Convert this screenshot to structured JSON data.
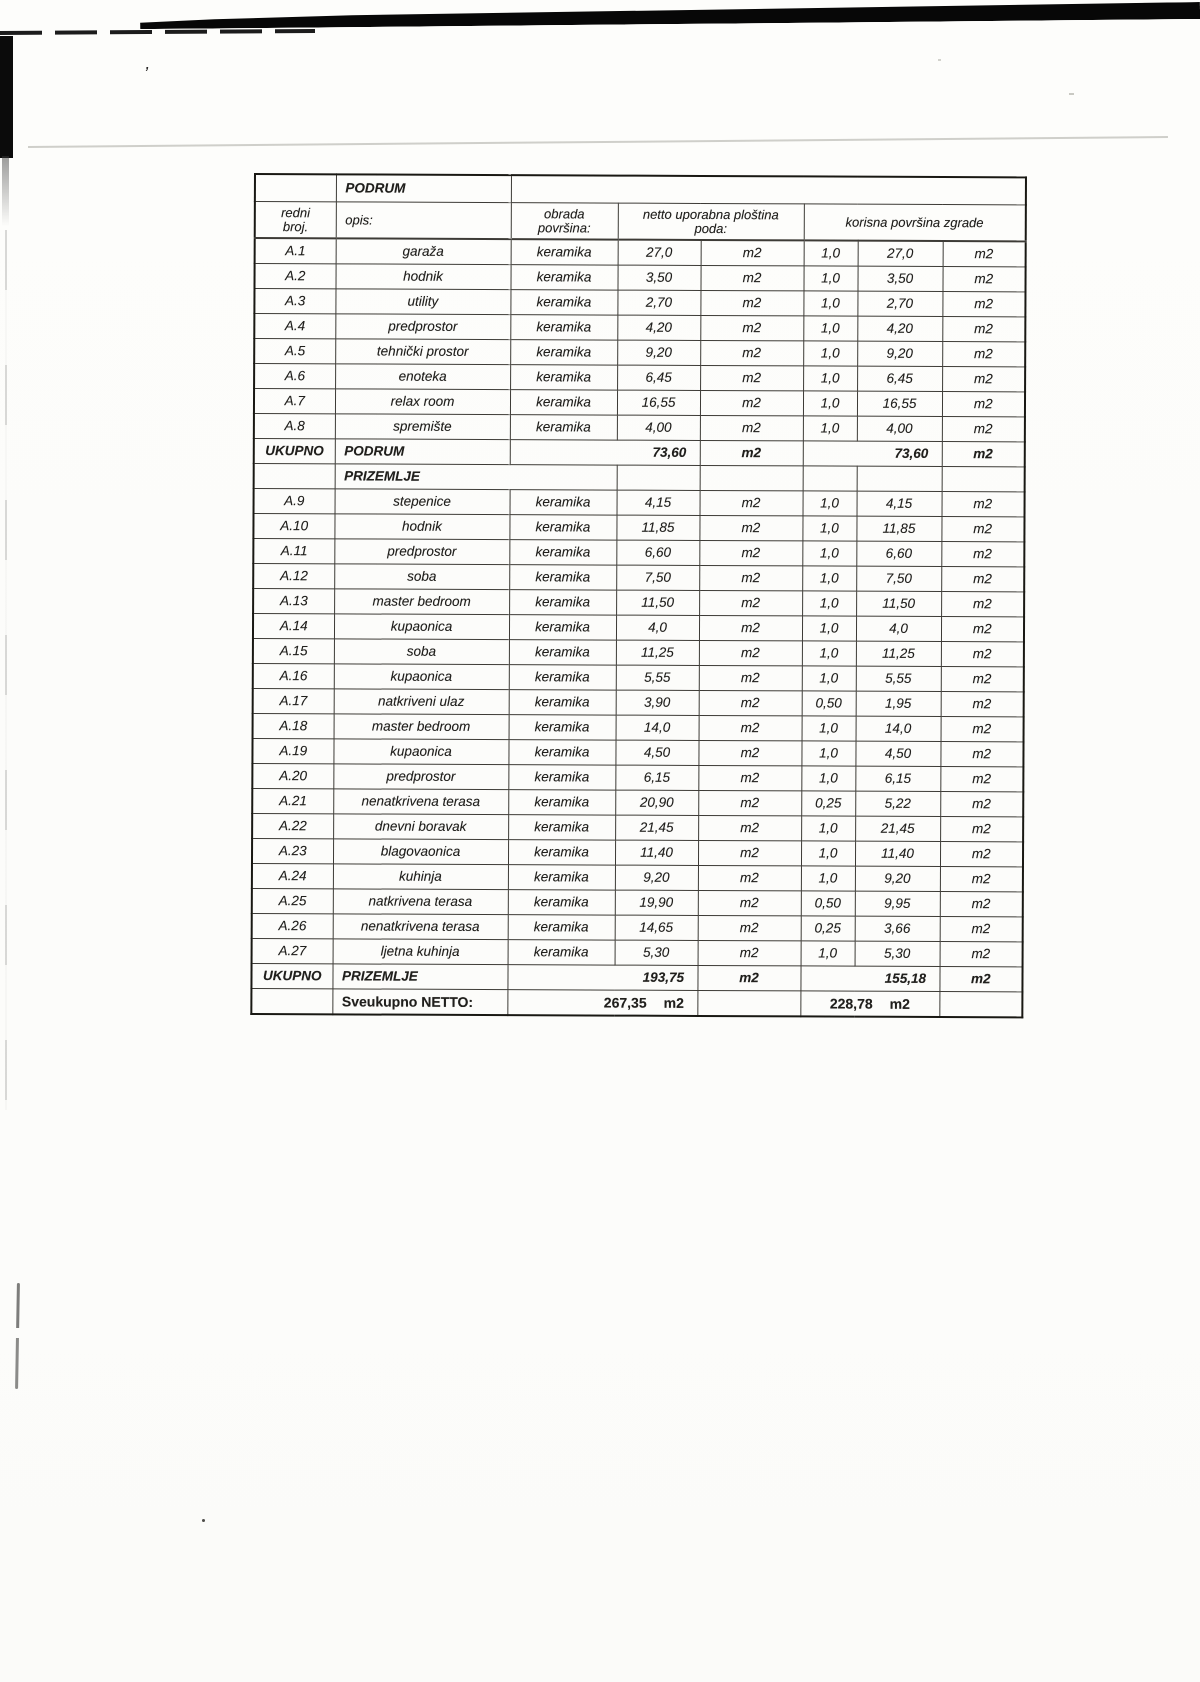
{
  "document": {
    "section1_title": "PODRUM",
    "header": {
      "col_redni_line1": "redni",
      "col_redni_line2": "broj.",
      "col_opis": "opis:",
      "col_obrada_line1": "obrada",
      "col_obrada_line2": "površina:",
      "col_netto_line1": "netto uporabna ploština",
      "col_netto_line2": "poda:",
      "col_korisna": "korisna površina zgrade"
    },
    "rows": [
      {
        "type": "data",
        "id": "A.1",
        "opis": "garaža",
        "obrada": "keramika",
        "netto": "27,0",
        "netto_unit": "m2",
        "coef": "1,0",
        "korisna": "27,0",
        "korisna_unit": "m2"
      },
      {
        "type": "data",
        "id": "A.2",
        "opis": "hodnik",
        "obrada": "keramika",
        "netto": "3,50",
        "netto_unit": "m2",
        "coef": "1,0",
        "korisna": "3,50",
        "korisna_unit": "m2"
      },
      {
        "type": "data",
        "id": "A.3",
        "opis": "utility",
        "obrada": "keramika",
        "netto": "2,70",
        "netto_unit": "m2",
        "coef": "1,0",
        "korisna": "2,70",
        "korisna_unit": "m2"
      },
      {
        "type": "data",
        "id": "A.4",
        "opis": "predprostor",
        "obrada": "keramika",
        "netto": "4,20",
        "netto_unit": "m2",
        "coef": "1,0",
        "korisna": "4,20",
        "korisna_unit": "m2"
      },
      {
        "type": "data",
        "id": "A.5",
        "opis": "tehnički prostor",
        "obrada": "keramika",
        "netto": "9,20",
        "netto_unit": "m2",
        "coef": "1,0",
        "korisna": "9,20",
        "korisna_unit": "m2"
      },
      {
        "type": "data",
        "id": "A.6",
        "opis": "enoteka",
        "obrada": "keramika",
        "netto": "6,45",
        "netto_unit": "m2",
        "coef": "1,0",
        "korisna": "6,45",
        "korisna_unit": "m2"
      },
      {
        "type": "data",
        "id": "A.7",
        "opis": "relax room",
        "obrada": "keramika",
        "netto": "16,55",
        "netto_unit": "m2",
        "coef": "1,0",
        "korisna": "16,55",
        "korisna_unit": "m2"
      },
      {
        "type": "data",
        "id": "A.8",
        "opis": "spremište",
        "obrada": "keramika",
        "netto": "4,00",
        "netto_unit": "m2",
        "coef": "1,0",
        "korisna": "4,00",
        "korisna_unit": "m2"
      },
      {
        "type": "total",
        "id": "UKUPNO",
        "opis": "PODRUM",
        "netto": "73,60",
        "netto_unit": "m2",
        "korisna": "73,60",
        "korisna_unit": "m2"
      },
      {
        "type": "section",
        "opis": "PRIZEMLJE"
      },
      {
        "type": "data",
        "id": "A.9",
        "opis": "stepenice",
        "obrada": "keramika",
        "netto": "4,15",
        "netto_unit": "m2",
        "coef": "1,0",
        "korisna": "4,15",
        "korisna_unit": "m2"
      },
      {
        "type": "data",
        "id": "A.10",
        "opis": "hodnik",
        "obrada": "keramika",
        "netto": "11,85",
        "netto_unit": "m2",
        "coef": "1,0",
        "korisna": "11,85",
        "korisna_unit": "m2"
      },
      {
        "type": "data",
        "id": "A.11",
        "opis": "predprostor",
        "obrada": "keramika",
        "netto": "6,60",
        "netto_unit": "m2",
        "coef": "1,0",
        "korisna": "6,60",
        "korisna_unit": "m2"
      },
      {
        "type": "data",
        "id": "A.12",
        "opis": "soba",
        "obrada": "keramika",
        "netto": "7,50",
        "netto_unit": "m2",
        "coef": "1,0",
        "korisna": "7,50",
        "korisna_unit": "m2"
      },
      {
        "type": "data",
        "id": "A.13",
        "opis": "master bedroom",
        "obrada": "keramika",
        "netto": "11,50",
        "netto_unit": "m2",
        "coef": "1,0",
        "korisna": "11,50",
        "korisna_unit": "m2"
      },
      {
        "type": "data",
        "id": "A.14",
        "opis": "kupaonica",
        "obrada": "keramika",
        "netto": "4,0",
        "netto_unit": "m2",
        "coef": "1,0",
        "korisna": "4,0",
        "korisna_unit": "m2"
      },
      {
        "type": "data",
        "id": "A.15",
        "opis": "soba",
        "obrada": "keramika",
        "netto": "11,25",
        "netto_unit": "m2",
        "coef": "1,0",
        "korisna": "11,25",
        "korisna_unit": "m2"
      },
      {
        "type": "data",
        "id": "A.16",
        "opis": "kupaonica",
        "obrada": "keramika",
        "netto": "5,55",
        "netto_unit": "m2",
        "coef": "1,0",
        "korisna": "5,55",
        "korisna_unit": "m2"
      },
      {
        "type": "data",
        "id": "A.17",
        "opis": "natkriveni ulaz",
        "obrada": "keramika",
        "netto": "3,90",
        "netto_unit": "m2",
        "coef": "0,50",
        "korisna": "1,95",
        "korisna_unit": "m2"
      },
      {
        "type": "data",
        "id": "A.18",
        "opis": "master bedroom",
        "obrada": "keramika",
        "netto": "14,0",
        "netto_unit": "m2",
        "coef": "1,0",
        "korisna": "14,0",
        "korisna_unit": "m2"
      },
      {
        "type": "data",
        "id": "A.19",
        "opis": "kupaonica",
        "obrada": "keramika",
        "netto": "4,50",
        "netto_unit": "m2",
        "coef": "1,0",
        "korisna": "4,50",
        "korisna_unit": "m2"
      },
      {
        "type": "data",
        "id": "A.20",
        "opis": "predprostor",
        "obrada": "keramika",
        "netto": "6,15",
        "netto_unit": "m2",
        "coef": "1,0",
        "korisna": "6,15",
        "korisna_unit": "m2"
      },
      {
        "type": "data",
        "id": "A.21",
        "opis": "nenatkrivena terasa",
        "obrada": "keramika",
        "netto": "20,90",
        "netto_unit": "m2",
        "coef": "0,25",
        "korisna": "5,22",
        "korisna_unit": "m2"
      },
      {
        "type": "data",
        "id": "A.22",
        "opis": "dnevni boravak",
        "obrada": "keramika",
        "netto": "21,45",
        "netto_unit": "m2",
        "coef": "1,0",
        "korisna": "21,45",
        "korisna_unit": "m2"
      },
      {
        "type": "data",
        "id": "A.23",
        "opis": "blagovaonica",
        "obrada": "keramika",
        "netto": "11,40",
        "netto_unit": "m2",
        "coef": "1,0",
        "korisna": "11,40",
        "korisna_unit": "m2"
      },
      {
        "type": "data",
        "id": "A.24",
        "opis": "kuhinja",
        "obrada": "keramika",
        "netto": "9,20",
        "netto_unit": "m2",
        "coef": "1,0",
        "korisna": "9,20",
        "korisna_unit": "m2"
      },
      {
        "type": "data",
        "id": "A.25",
        "opis": "natkrivena terasa",
        "obrada": "keramika",
        "netto": "19,90",
        "netto_unit": "m2",
        "coef": "0,50",
        "korisna": "9,95",
        "korisna_unit": "m2"
      },
      {
        "type": "data",
        "id": "A.26",
        "opis": "nenatkrivena terasa",
        "obrada": "keramika",
        "netto": "14,65",
        "netto_unit": "m2",
        "coef": "0,25",
        "korisna": "3,66",
        "korisna_unit": "m2"
      },
      {
        "type": "data",
        "id": "A.27",
        "opis": "ljetna kuhinja",
        "obrada": "keramika",
        "netto": "5,30",
        "netto_unit": "m2",
        "coef": "1,0",
        "korisna": "5,30",
        "korisna_unit": "m2"
      },
      {
        "type": "total",
        "id": "UKUPNO",
        "opis": "PRIZEMLJE",
        "netto": "193,75",
        "netto_unit": "m2",
        "korisna": "155,18",
        "korisna_unit": "m2"
      },
      {
        "type": "grand",
        "opis": "Sveukupno NETTO:",
        "netto": "267,35",
        "netto_unit": "m2",
        "korisna": "228,78",
        "korisna_unit": "m2"
      }
    ]
  },
  "artifacts": {
    "apostrophe": "’"
  }
}
